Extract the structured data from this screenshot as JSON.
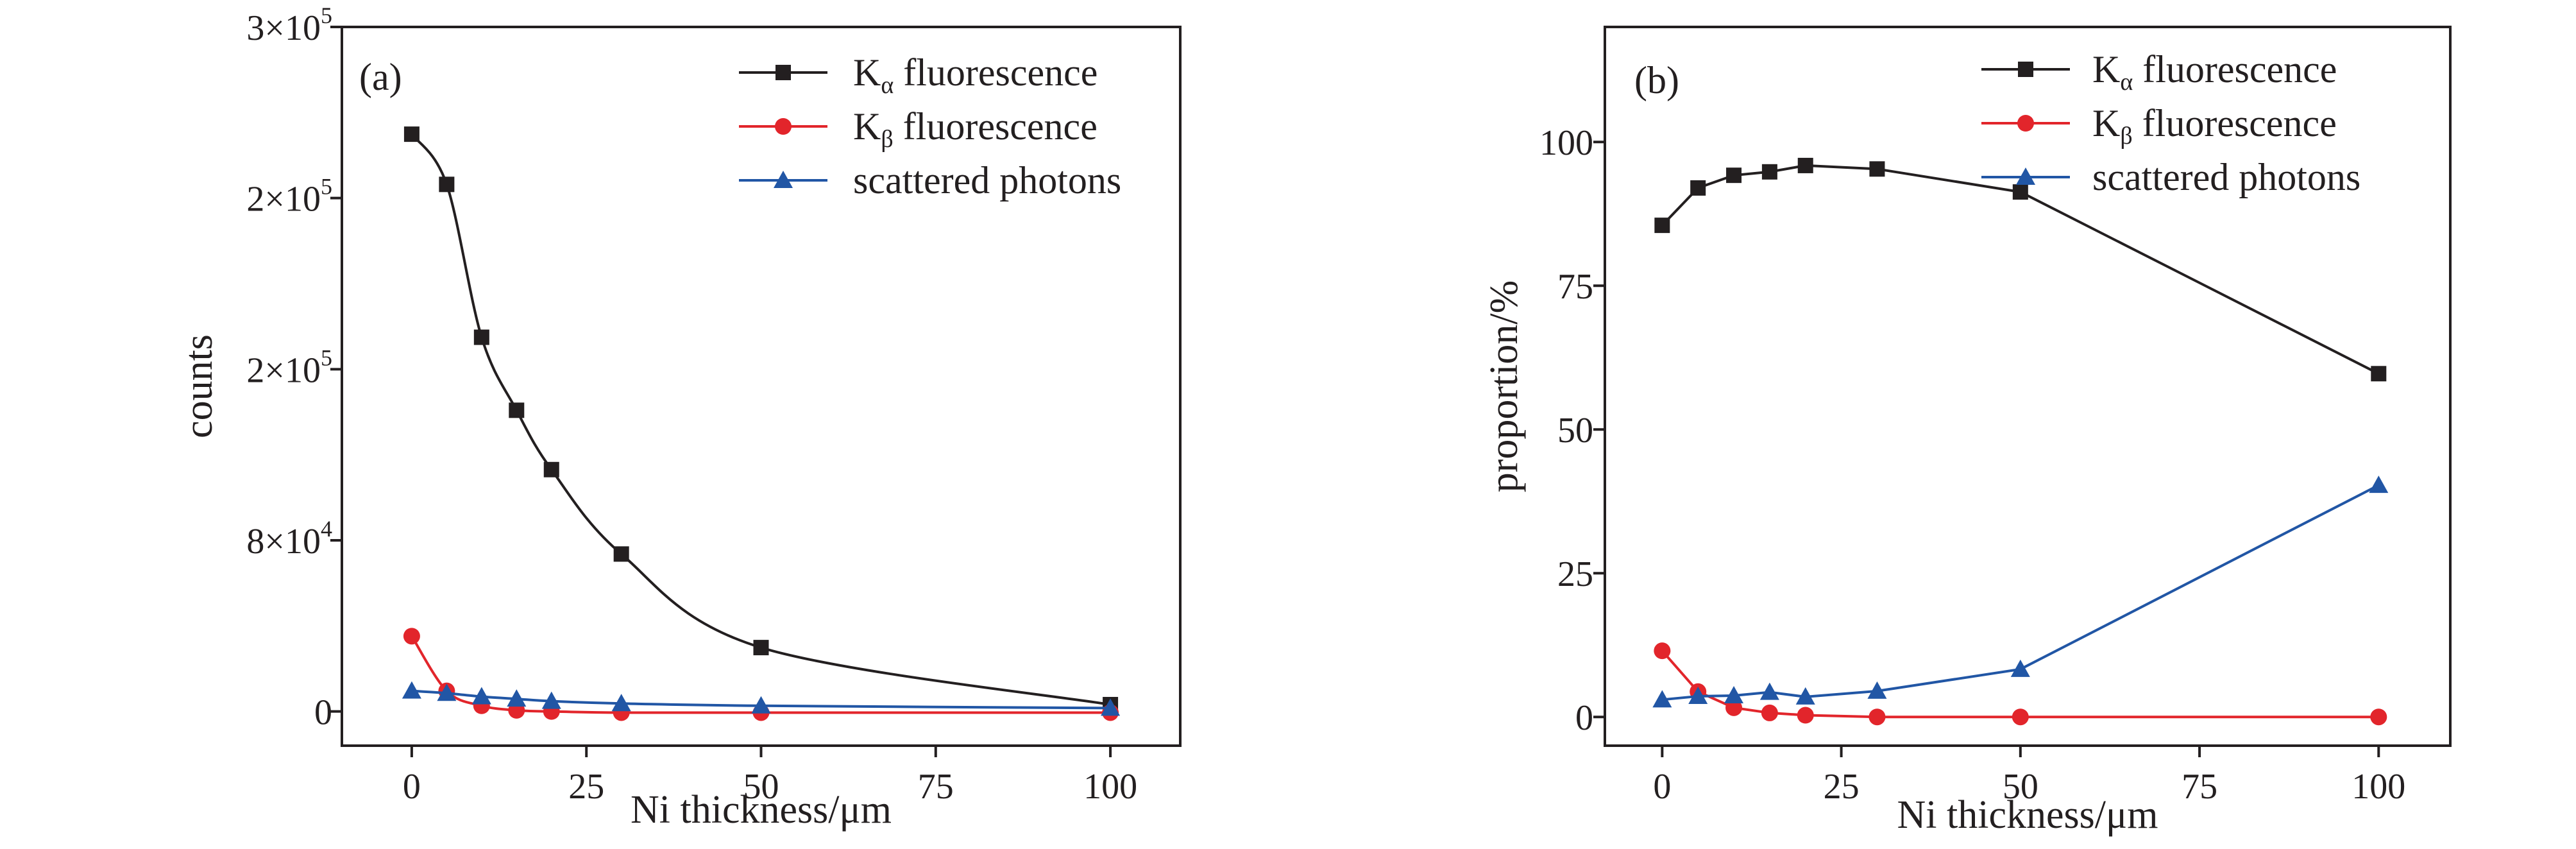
{
  "chart_data": [
    {
      "type": "line",
      "panel_label": "(a)",
      "xlabel": "Ni thickness/μm",
      "ylabel": "counts",
      "xlim": [
        -10,
        110
      ],
      "ylim": [
        -15000,
        300000
      ],
      "x_ticks": [
        0,
        25,
        50,
        75,
        100
      ],
      "x_tick_labels": [
        "0",
        "25",
        "50",
        "75",
        "100"
      ],
      "y_ticks": [
        0,
        75000,
        150000,
        225000,
        300000
      ],
      "y_tick_labels": [
        {
          "base": "0",
          "exp": ""
        },
        {
          "base": "8×10",
          "exp": "4"
        },
        {
          "base": "2×10",
          "exp": "5"
        },
        {
          "base": "2×10",
          "exp": "5"
        },
        {
          "base": "3×10",
          "exp": "5"
        }
      ],
      "legend_position": "top-right",
      "x": [
        0,
        5,
        10,
        15,
        20,
        30,
        50,
        100
      ],
      "series": [
        {
          "name": "K",
          "subscript": "α",
          "name_suffix": " fluorescence",
          "marker": "square",
          "color": "#231f20",
          "values": [
            253000,
            231000,
            164000,
            132000,
            106000,
            69000,
            28000,
            3000
          ]
        },
        {
          "name": "K",
          "subscript": "β",
          "name_suffix": " fluorescence",
          "marker": "circle",
          "color": "#e2252b",
          "values": [
            33000,
            9000,
            2500,
            500,
            0,
            -500,
            -500,
            -500
          ]
        },
        {
          "name": "scattered photons",
          "subscript": "",
          "name_suffix": "",
          "marker": "triangle",
          "color": "#2156a5",
          "values": [
            9000,
            8000,
            6500,
            5500,
            4500,
            3500,
            2500,
            1500
          ]
        }
      ]
    },
    {
      "type": "line",
      "panel_label": "(b)",
      "xlabel": "Ni thickness/μm",
      "ylabel": "proportion/%",
      "xlim": [
        -8,
        110
      ],
      "ylim": [
        -5,
        120
      ],
      "x_ticks": [
        0,
        25,
        50,
        75,
        100
      ],
      "x_tick_labels": [
        "0",
        "25",
        "50",
        "75",
        "100"
      ],
      "y_ticks": [
        0,
        25,
        50,
        75,
        100
      ],
      "y_tick_labels": [
        {
          "base": "0",
          "exp": ""
        },
        {
          "base": "25",
          "exp": ""
        },
        {
          "base": "50",
          "exp": ""
        },
        {
          "base": "75",
          "exp": ""
        },
        {
          "base": "100",
          "exp": ""
        }
      ],
      "legend_position": "top-right",
      "x": [
        0,
        5,
        10,
        15,
        20,
        30,
        50,
        100
      ],
      "series": [
        {
          "name": "K",
          "subscript": "α",
          "name_suffix": " fluorescence",
          "marker": "square",
          "color": "#231f20",
          "values": [
            85.5,
            92,
            94.2,
            94.8,
            95.9,
            95.3,
            91.3,
            59.7
          ]
        },
        {
          "name": "K",
          "subscript": "β",
          "name_suffix": " fluorescence",
          "marker": "circle",
          "color": "#e2252b",
          "values": [
            11.5,
            4.4,
            1.6,
            0.7,
            0.3,
            0,
            0,
            0
          ]
        },
        {
          "name": "scattered photons",
          "subscript": "",
          "name_suffix": "",
          "marker": "triangle",
          "color": "#2156a5",
          "values": [
            3,
            3.6,
            3.7,
            4.3,
            3.5,
            4.5,
            8.3,
            40.3
          ]
        }
      ]
    }
  ]
}
